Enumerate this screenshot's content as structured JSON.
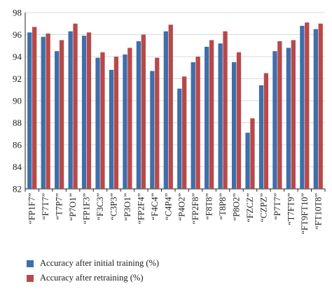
{
  "chart_data": {
    "type": "bar",
    "title": "",
    "xlabel": "",
    "ylabel": "",
    "ylim": [
      82,
      98
    ],
    "yticks": [
      82,
      84,
      86,
      88,
      90,
      92,
      94,
      96,
      98
    ],
    "grid": "horizontal",
    "legend_position": "bottom-left",
    "categories": [
      "“FP1F7”",
      "“F7T7”",
      "“T7P7”",
      "“P7O1”",
      "“FP1F3”",
      "“F3C3”",
      "“C3P3”",
      "“P3O1”",
      "“FP2F4”",
      "“F4C4”",
      "“C4P4”",
      "“P4O2”",
      "“FP2F8”",
      "“F8T8”",
      "“T8P8”",
      "“P8O2”",
      "“FZCZ”",
      "“CZPZ”",
      "“P7T7”",
      "“T7FT9”",
      "“FT9FT10”",
      "“FT10T8”"
    ],
    "series": [
      {
        "name": "Accuracy after initial training (%)",
        "color": "#3f6eaa",
        "values": [
          96.2,
          95.8,
          94.5,
          96.3,
          95.9,
          93.9,
          92.8,
          94.2,
          95.4,
          92.7,
          96.3,
          91.1,
          93.5,
          94.9,
          95.2,
          93.5,
          87.1,
          91.4,
          94.5,
          94.8,
          96.8,
          96.5
        ]
      },
      {
        "name": "Accuracy after retraining (%)",
        "color": "#b8494a",
        "values": [
          96.7,
          96.1,
          95.5,
          97.0,
          96.2,
          94.4,
          94.0,
          94.8,
          96.0,
          93.9,
          96.9,
          92.2,
          94.0,
          95.5,
          96.3,
          94.4,
          88.4,
          92.5,
          95.4,
          95.5,
          97.1,
          97.0
        ]
      }
    ]
  }
}
